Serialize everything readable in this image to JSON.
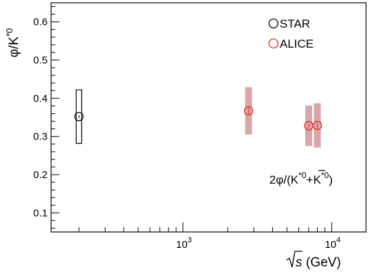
{
  "chart_data": {
    "type": "scatter",
    "xscale": "log",
    "xlim": [
      130,
      17000
    ],
    "ylim": [
      0.05,
      0.65
    ],
    "grid": false,
    "legend": "top-right",
    "xlabel": {
      "base": "s",
      "unit": "(GeV)"
    },
    "ylabel": {
      "pre": "φ/K",
      "sup": "*0"
    },
    "annotation": {
      "a": "2φ/(K",
      "b": "*0",
      "c": "+",
      "d": "K",
      "e": "*0",
      "f": ")"
    },
    "y_ticks": [
      "0.1",
      "0.2",
      "0.3",
      "0.4",
      "0.5",
      "0.6"
    ],
    "x_ticks": [
      {
        "value": 1000,
        "base": "10",
        "exp": "3"
      },
      {
        "value": 10000,
        "base": "10",
        "exp": "4"
      }
    ],
    "series": [
      {
        "name": "STAR",
        "color": "#000000",
        "sys_style": "open-box",
        "points": [
          {
            "x": 200,
            "y": 0.352,
            "sys": 0.07,
            "stat": 0.004
          }
        ]
      },
      {
        "name": "ALICE",
        "color": "#e8271e",
        "sys_color": "#d9a7a7",
        "sys_style": "filled-band",
        "points": [
          {
            "x": 2760,
            "y": 0.367,
            "sys": 0.062,
            "stat": 0.01
          },
          {
            "x": 7000,
            "y": 0.328,
            "sys": 0.053,
            "stat": 0.006
          },
          {
            "x": 8000,
            "y": 0.329,
            "sys": 0.058,
            "stat": 0.007
          }
        ]
      }
    ]
  }
}
